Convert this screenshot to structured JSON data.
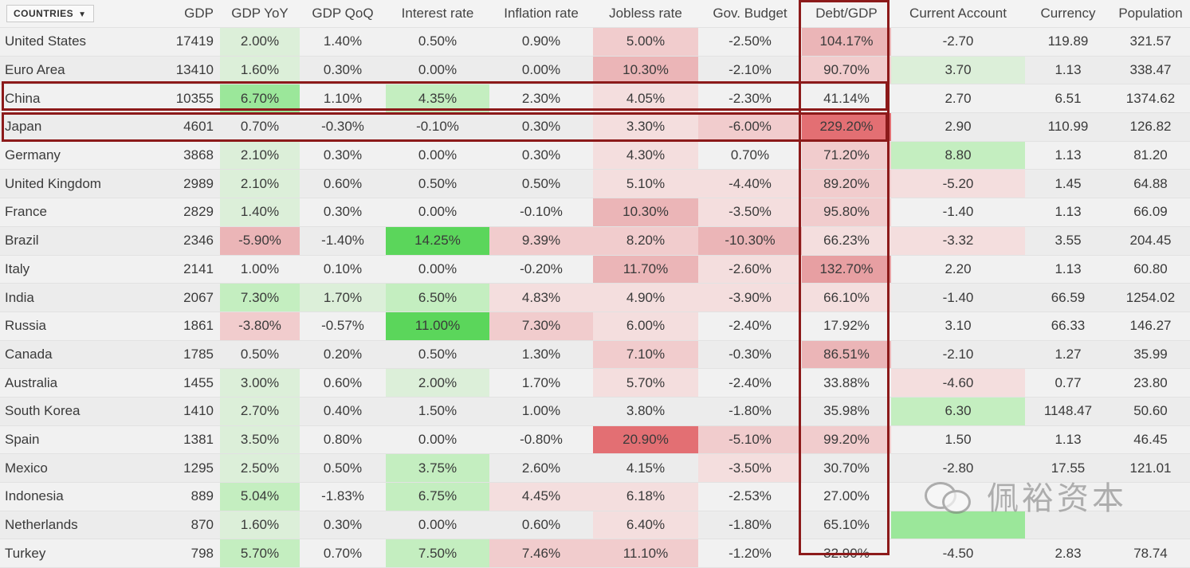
{
  "header": {
    "countries_label": "COUNTRIES",
    "columns": [
      "GDP",
      "GDP YoY",
      "GDP QoQ",
      "Interest rate",
      "Inflation rate",
      "Jobless rate",
      "Gov. Budget",
      "Debt/GDP",
      "Current Account",
      "Currency",
      "Population"
    ]
  },
  "rows": [
    {
      "country": "United States",
      "gdp": "17419",
      "gdp_yoy": "2.00%",
      "gdp_qoq": "1.40%",
      "interest": "0.50%",
      "inflation": "0.90%",
      "jobless": "5.00%",
      "budget": "-2.50%",
      "debt": "104.17%",
      "current_account": "-2.70",
      "currency": "119.89",
      "population": "321.57"
    },
    {
      "country": "Euro Area",
      "gdp": "13410",
      "gdp_yoy": "1.60%",
      "gdp_qoq": "0.30%",
      "interest": "0.00%",
      "inflation": "0.00%",
      "jobless": "10.30%",
      "budget": "-2.10%",
      "debt": "90.70%",
      "current_account": "3.70",
      "currency": "1.13",
      "population": "338.47"
    },
    {
      "country": "China",
      "gdp": "10355",
      "gdp_yoy": "6.70%",
      "gdp_qoq": "1.10%",
      "interest": "4.35%",
      "inflation": "2.30%",
      "jobless": "4.05%",
      "budget": "-2.30%",
      "debt": "41.14%",
      "current_account": "2.70",
      "currency": "6.51",
      "population": "1374.62"
    },
    {
      "country": "Japan",
      "gdp": "4601",
      "gdp_yoy": "0.70%",
      "gdp_qoq": "-0.30%",
      "interest": "-0.10%",
      "inflation": "0.30%",
      "jobless": "3.30%",
      "budget": "-6.00%",
      "debt": "229.20%",
      "current_account": "2.90",
      "currency": "110.99",
      "population": "126.82"
    },
    {
      "country": "Germany",
      "gdp": "3868",
      "gdp_yoy": "2.10%",
      "gdp_qoq": "0.30%",
      "interest": "0.00%",
      "inflation": "0.30%",
      "jobless": "4.30%",
      "budget": "0.70%",
      "debt": "71.20%",
      "current_account": "8.80",
      "currency": "1.13",
      "population": "81.20"
    },
    {
      "country": "United Kingdom",
      "gdp": "2989",
      "gdp_yoy": "2.10%",
      "gdp_qoq": "0.60%",
      "interest": "0.50%",
      "inflation": "0.50%",
      "jobless": "5.10%",
      "budget": "-4.40%",
      "debt": "89.20%",
      "current_account": "-5.20",
      "currency": "1.45",
      "population": "64.88"
    },
    {
      "country": "France",
      "gdp": "2829",
      "gdp_yoy": "1.40%",
      "gdp_qoq": "0.30%",
      "interest": "0.00%",
      "inflation": "-0.10%",
      "jobless": "10.30%",
      "budget": "-3.50%",
      "debt": "95.80%",
      "current_account": "-1.40",
      "currency": "1.13",
      "population": "66.09"
    },
    {
      "country": "Brazil",
      "gdp": "2346",
      "gdp_yoy": "-5.90%",
      "gdp_qoq": "-1.40%",
      "interest": "14.25%",
      "inflation": "9.39%",
      "jobless": "8.20%",
      "budget": "-10.30%",
      "debt": "66.23%",
      "current_account": "-3.32",
      "currency": "3.55",
      "population": "204.45"
    },
    {
      "country": "Italy",
      "gdp": "2141",
      "gdp_yoy": "1.00%",
      "gdp_qoq": "0.10%",
      "interest": "0.00%",
      "inflation": "-0.20%",
      "jobless": "11.70%",
      "budget": "-2.60%",
      "debt": "132.70%",
      "current_account": "2.20",
      "currency": "1.13",
      "population": "60.80"
    },
    {
      "country": "India",
      "gdp": "2067",
      "gdp_yoy": "7.30%",
      "gdp_qoq": "1.70%",
      "interest": "6.50%",
      "inflation": "4.83%",
      "jobless": "4.90%",
      "budget": "-3.90%",
      "debt": "66.10%",
      "current_account": "-1.40",
      "currency": "66.59",
      "population": "1254.02"
    },
    {
      "country": "Russia",
      "gdp": "1861",
      "gdp_yoy": "-3.80%",
      "gdp_qoq": "-0.57%",
      "interest": "11.00%",
      "inflation": "7.30%",
      "jobless": "6.00%",
      "budget": "-2.40%",
      "debt": "17.92%",
      "current_account": "3.10",
      "currency": "66.33",
      "population": "146.27"
    },
    {
      "country": "Canada",
      "gdp": "1785",
      "gdp_yoy": "0.50%",
      "gdp_qoq": "0.20%",
      "interest": "0.50%",
      "inflation": "1.30%",
      "jobless": "7.10%",
      "budget": "-0.30%",
      "debt": "86.51%",
      "current_account": "-2.10",
      "currency": "1.27",
      "population": "35.99"
    },
    {
      "country": "Australia",
      "gdp": "1455",
      "gdp_yoy": "3.00%",
      "gdp_qoq": "0.60%",
      "interest": "2.00%",
      "inflation": "1.70%",
      "jobless": "5.70%",
      "budget": "-2.40%",
      "debt": "33.88%",
      "current_account": "-4.60",
      "currency": "0.77",
      "population": "23.80"
    },
    {
      "country": "South Korea",
      "gdp": "1410",
      "gdp_yoy": "2.70%",
      "gdp_qoq": "0.40%",
      "interest": "1.50%",
      "inflation": "1.00%",
      "jobless": "3.80%",
      "budget": "-1.80%",
      "debt": "35.98%",
      "current_account": "6.30",
      "currency": "1148.47",
      "population": "50.60"
    },
    {
      "country": "Spain",
      "gdp": "1381",
      "gdp_yoy": "3.50%",
      "gdp_qoq": "0.80%",
      "interest": "0.00%",
      "inflation": "-0.80%",
      "jobless": "20.90%",
      "budget": "-5.10%",
      "debt": "99.20%",
      "current_account": "1.50",
      "currency": "1.13",
      "population": "46.45"
    },
    {
      "country": "Mexico",
      "gdp": "1295",
      "gdp_yoy": "2.50%",
      "gdp_qoq": "0.50%",
      "interest": "3.75%",
      "inflation": "2.60%",
      "jobless": "4.15%",
      "budget": "-3.50%",
      "debt": "30.70%",
      "current_account": "-2.80",
      "currency": "17.55",
      "population": "121.01"
    },
    {
      "country": "Indonesia",
      "gdp": "889",
      "gdp_yoy": "5.04%",
      "gdp_qoq": "-1.83%",
      "interest": "6.75%",
      "inflation": "4.45%",
      "jobless": "6.18%",
      "budget": "-2.53%",
      "debt": "27.00%",
      "current_account": "",
      "currency": "",
      "population": ""
    },
    {
      "country": "Netherlands",
      "gdp": "870",
      "gdp_yoy": "1.60%",
      "gdp_qoq": "0.30%",
      "interest": "0.00%",
      "inflation": "0.60%",
      "jobless": "6.40%",
      "budget": "-1.80%",
      "debt": "65.10%",
      "current_account": "",
      "currency": "",
      "population": ""
    },
    {
      "country": "Turkey",
      "gdp": "798",
      "gdp_yoy": "5.70%",
      "gdp_qoq": "0.70%",
      "interest": "7.50%",
      "inflation": "7.46%",
      "jobless": "11.10%",
      "budget": "-1.20%",
      "debt": "32.90%",
      "current_account": "-4.50",
      "currency": "2.83",
      "population": "78.74"
    }
  ],
  "heat": [
    {
      "gdp_yoy": "g1",
      "gdp_qoq": "",
      "interest": "",
      "inflation": "",
      "jobless": "r2",
      "budget": "",
      "debt": "r3",
      "current_account": "",
      "currency": "",
      "population": ""
    },
    {
      "gdp_yoy": "g1",
      "gdp_qoq": "",
      "interest": "",
      "inflation": "",
      "jobless": "r3",
      "budget": "",
      "debt": "r2",
      "current_account": "g1",
      "currency": "",
      "population": ""
    },
    {
      "gdp_yoy": "g3",
      "gdp_qoq": "",
      "interest": "g2",
      "inflation": "",
      "jobless": "r1",
      "budget": "",
      "debt": "",
      "current_account": "",
      "currency": "",
      "population": ""
    },
    {
      "gdp_yoy": "",
      "gdp_qoq": "",
      "interest": "",
      "inflation": "",
      "jobless": "r1",
      "budget": "r2",
      "debt": "r5",
      "current_account": "",
      "currency": "",
      "population": ""
    },
    {
      "gdp_yoy": "g1",
      "gdp_qoq": "",
      "interest": "",
      "inflation": "",
      "jobless": "r1",
      "budget": "",
      "debt": "r2",
      "current_account": "g2",
      "currency": "",
      "population": ""
    },
    {
      "gdp_yoy": "g1",
      "gdp_qoq": "",
      "interest": "",
      "inflation": "",
      "jobless": "r1",
      "budget": "r1",
      "debt": "r2",
      "current_account": "r1",
      "currency": "",
      "population": ""
    },
    {
      "gdp_yoy": "g1",
      "gdp_qoq": "",
      "interest": "",
      "inflation": "",
      "jobless": "r3",
      "budget": "r1",
      "debt": "r2",
      "current_account": "",
      "currency": "",
      "population": ""
    },
    {
      "gdp_yoy": "r3",
      "gdp_qoq": "",
      "interest": "g4",
      "inflation": "r2",
      "jobless": "r2",
      "budget": "r3",
      "debt": "r1",
      "current_account": "r1",
      "currency": "",
      "population": ""
    },
    {
      "gdp_yoy": "",
      "gdp_qoq": "",
      "interest": "",
      "inflation": "",
      "jobless": "r3",
      "budget": "r1",
      "debt": "r4",
      "current_account": "",
      "currency": "",
      "population": ""
    },
    {
      "gdp_yoy": "g2",
      "gdp_qoq": "g1",
      "interest": "g2",
      "inflation": "r1",
      "jobless": "r1",
      "budget": "r1",
      "debt": "r1",
      "current_account": "",
      "currency": "",
      "population": ""
    },
    {
      "gdp_yoy": "r2",
      "gdp_qoq": "",
      "interest": "g4",
      "inflation": "r2",
      "jobless": "r1",
      "budget": "",
      "debt": "",
      "current_account": "",
      "currency": "",
      "population": ""
    },
    {
      "gdp_yoy": "",
      "gdp_qoq": "",
      "interest": "",
      "inflation": "",
      "jobless": "r2",
      "budget": "",
      "debt": "r3",
      "current_account": "",
      "currency": "",
      "population": ""
    },
    {
      "gdp_yoy": "g1",
      "gdp_qoq": "",
      "interest": "g1",
      "inflation": "",
      "jobless": "r1",
      "budget": "",
      "debt": "",
      "current_account": "r1",
      "currency": "",
      "population": ""
    },
    {
      "gdp_yoy": "g1",
      "gdp_qoq": "",
      "interest": "",
      "inflation": "",
      "jobless": "",
      "budget": "",
      "debt": "",
      "current_account": "g2",
      "currency": "",
      "population": ""
    },
    {
      "gdp_yoy": "g1",
      "gdp_qoq": "",
      "interest": "",
      "inflation": "",
      "jobless": "r5",
      "budget": "r2",
      "debt": "r2",
      "current_account": "",
      "currency": "",
      "population": ""
    },
    {
      "gdp_yoy": "g1",
      "gdp_qoq": "",
      "interest": "g2",
      "inflation": "",
      "jobless": "",
      "budget": "r1",
      "debt": "",
      "current_account": "",
      "currency": "",
      "population": ""
    },
    {
      "gdp_yoy": "g2",
      "gdp_qoq": "",
      "interest": "g2",
      "inflation": "r1",
      "jobless": "r1",
      "budget": "",
      "debt": "",
      "current_account": "",
      "currency": "",
      "population": ""
    },
    {
      "gdp_yoy": "g1",
      "gdp_qoq": "",
      "interest": "",
      "inflation": "",
      "jobless": "r1",
      "budget": "",
      "debt": "",
      "current_account": "g3",
      "currency": "",
      "population": ""
    },
    {
      "gdp_yoy": "g2",
      "gdp_qoq": "",
      "interest": "g2",
      "inflation": "r2",
      "jobless": "r2",
      "budget": "",
      "debt": "",
      "current_account": "",
      "currency": "",
      "population": ""
    }
  ],
  "watermark": {
    "text": "佩裕资本",
    "icon": "wechat-icon"
  }
}
